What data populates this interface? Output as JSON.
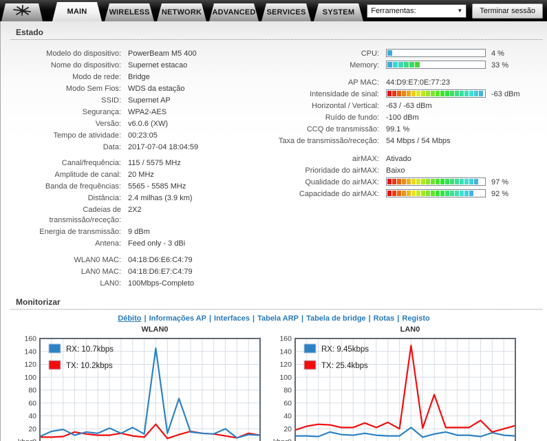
{
  "header": {
    "logo_icon": "ubiquiti-antenna",
    "tabs": [
      {
        "label": "MAIN",
        "active": true
      },
      {
        "label": "WIRELESS",
        "active": false
      },
      {
        "label": "NETWORK",
        "active": false
      },
      {
        "label": "ADVANCED",
        "active": false
      },
      {
        "label": "SERVICES",
        "active": false
      },
      {
        "label": "SYSTEM",
        "active": false
      }
    ],
    "tools_label": "Ferramentas:",
    "tools_arrow_icon": "chevron-down",
    "logout_label": "Terminar sessão"
  },
  "status_section": {
    "title": "Estado",
    "left_rows": [
      {
        "label": "Modelo do dispositivo:",
        "value": "PowerBeam M5 400"
      },
      {
        "label": "Nome do dispositivo:",
        "value": "Supernet estacao"
      },
      {
        "label": "Modo de rede:",
        "value": "Bridge"
      },
      {
        "label": "Modo Sem Fios:",
        "value": "WDS da estação"
      },
      {
        "label": "SSID:",
        "value": "Supernet AP"
      },
      {
        "label": "Segurança:",
        "value": "WPA2-AES"
      },
      {
        "label": "Versão:",
        "value": "v6.0.6 (XW)"
      },
      {
        "label": "Tempo de atividade:",
        "value": "00:23:05"
      },
      {
        "label": "Data:",
        "value": "2017-07-04 18:04:59"
      },
      {
        "spacer": 6
      },
      {
        "label": "Canal/frequência:",
        "value": "115 / 5575 MHz"
      },
      {
        "label": "Amplitude de canal:",
        "value": "20 MHz"
      },
      {
        "label": "Banda de frequências:",
        "value": "5565 - 5585 MHz"
      },
      {
        "label": "Distância:",
        "value": "2.4 milhas (3.9 km)"
      },
      {
        "label": "Cadeias de transmissão/receção:",
        "value": "2X2"
      },
      {
        "label": "Energia de transmissão:",
        "value": "9 dBm"
      },
      {
        "label": "Antena:",
        "value": "Feed only - 3 dBi"
      },
      {
        "spacer": 7
      },
      {
        "label": "WLAN0 MAC:",
        "value": "04:18:D6:E6:C4:79"
      },
      {
        "label": "LAN0 MAC:",
        "value": "04:18:D6:E7:C4:79"
      },
      {
        "label": "LAN0:",
        "value": "100Mbps-Completo"
      }
    ],
    "right_rows": [
      {
        "label": "CPU:",
        "bar": {
          "percent": 4,
          "ramp": "cool",
          "segments": 18
        },
        "value": "4 %"
      },
      {
        "label": "Memory:",
        "bar": {
          "percent": 33,
          "ramp": "cool",
          "segments": 18
        },
        "value": "33 %"
      },
      {
        "spacer": 8
      },
      {
        "label": "AP MAC:",
        "value": "44:D9:E7:0E:77:23"
      },
      {
        "label": "Intensidade de sinal:",
        "bar": {
          "percent": 100,
          "ramp": "spectrum",
          "segments": 20
        },
        "value": "-63 dBm"
      },
      {
        "label": "Horizontal / Vertical:",
        "value": "-63 / -63 dBm"
      },
      {
        "label": "Ruído de fundo:",
        "value": "-100 dBm"
      },
      {
        "label": "CCQ de transmissão:",
        "value": "99.1 %"
      },
      {
        "label": "Taxa de transmissão/receção:",
        "value": "54 Mbps / 54 Mbps"
      },
      {
        "spacer": 9
      },
      {
        "label": "airMAX:",
        "value": "Ativado"
      },
      {
        "label": "Prioridade do airMAX:",
        "value": "Baixo"
      },
      {
        "label": "Qualidade do airMAX:",
        "bar": {
          "percent": 97,
          "ramp": "spectrum",
          "segments": 20
        },
        "value": "97 %"
      },
      {
        "label": "Capacidade do airMAX:",
        "bar": {
          "percent": 92,
          "ramp": "spectrum",
          "segments": 20
        },
        "value": "92 %"
      }
    ]
  },
  "monitor_section": {
    "title": "Monitorizar",
    "separator": "|",
    "links": [
      {
        "label": "Débito",
        "active": true
      },
      {
        "label": "Informações AP",
        "active": false
      },
      {
        "label": "Interfaces",
        "active": false
      },
      {
        "label": "Tabela ARP",
        "active": false
      },
      {
        "label": "Tabela de bridge",
        "active": false
      },
      {
        "label": "Rotas",
        "active": false
      },
      {
        "label": "Registo",
        "active": false
      }
    ]
  },
  "chart_data": [
    {
      "type": "line",
      "title": "WLAN0",
      "ylabel": "kbps",
      "ylim": [
        0,
        160
      ],
      "yticks": [
        0,
        20,
        40,
        60,
        80,
        100,
        120,
        140,
        160
      ],
      "grid": true,
      "legend_position": "top-left",
      "draw_order": [
        1,
        0
      ],
      "series": [
        {
          "name": "RX: 10.7kbps",
          "color": "#2d82c5",
          "values": [
            8,
            16,
            19,
            10,
            15,
            13,
            21,
            13,
            22,
            12,
            145,
            13,
            67,
            15,
            13,
            12,
            20,
            6,
            11,
            10
          ]
        },
        {
          "name": "TX: 10.2kbps",
          "color": "#f20d0d",
          "values": [
            7,
            7,
            8,
            15,
            12,
            10,
            10,
            13,
            9,
            7,
            27,
            5,
            11,
            16,
            13,
            12,
            9,
            6,
            13,
            10
          ]
        }
      ]
    },
    {
      "type": "line",
      "title": "LAN0",
      "ylabel": "kbps",
      "ylim": [
        0,
        160
      ],
      "yticks": [
        0,
        20,
        40,
        60,
        80,
        100,
        120,
        140,
        160
      ],
      "grid": true,
      "legend_position": "top-left",
      "draw_order": [
        0,
        1
      ],
      "series": [
        {
          "name": "RX: 9.45kbps",
          "color": "#2d82c5",
          "values": [
            9,
            9,
            8,
            15,
            11,
            10,
            13,
            10,
            9,
            9,
            22,
            7,
            12,
            15,
            10,
            10,
            8,
            14,
            10,
            9
          ]
        },
        {
          "name": "TX: 25.4kbps",
          "color": "#f20d0d",
          "values": [
            18,
            24,
            27,
            26,
            22,
            22,
            29,
            22,
            30,
            20,
            149,
            21,
            73,
            22,
            22,
            22,
            33,
            15,
            20,
            25
          ]
        }
      ]
    }
  ],
  "colors": {
    "link_blue": "#2a7ab9",
    "label_gray": "#4f4f4f",
    "value_gray": "#383838",
    "rx_line": "#2d82c5",
    "tx_line": "#f20d0d",
    "chart_grid": "#d7dde3",
    "chart_border": "#5f6a72",
    "bar_ramp_cool_start_hue": 197,
    "bar_ramp_cool_end_hue": 118,
    "bar_ramp_spectrum_start_hue": 0,
    "bar_ramp_spectrum_end_hue": 197
  }
}
